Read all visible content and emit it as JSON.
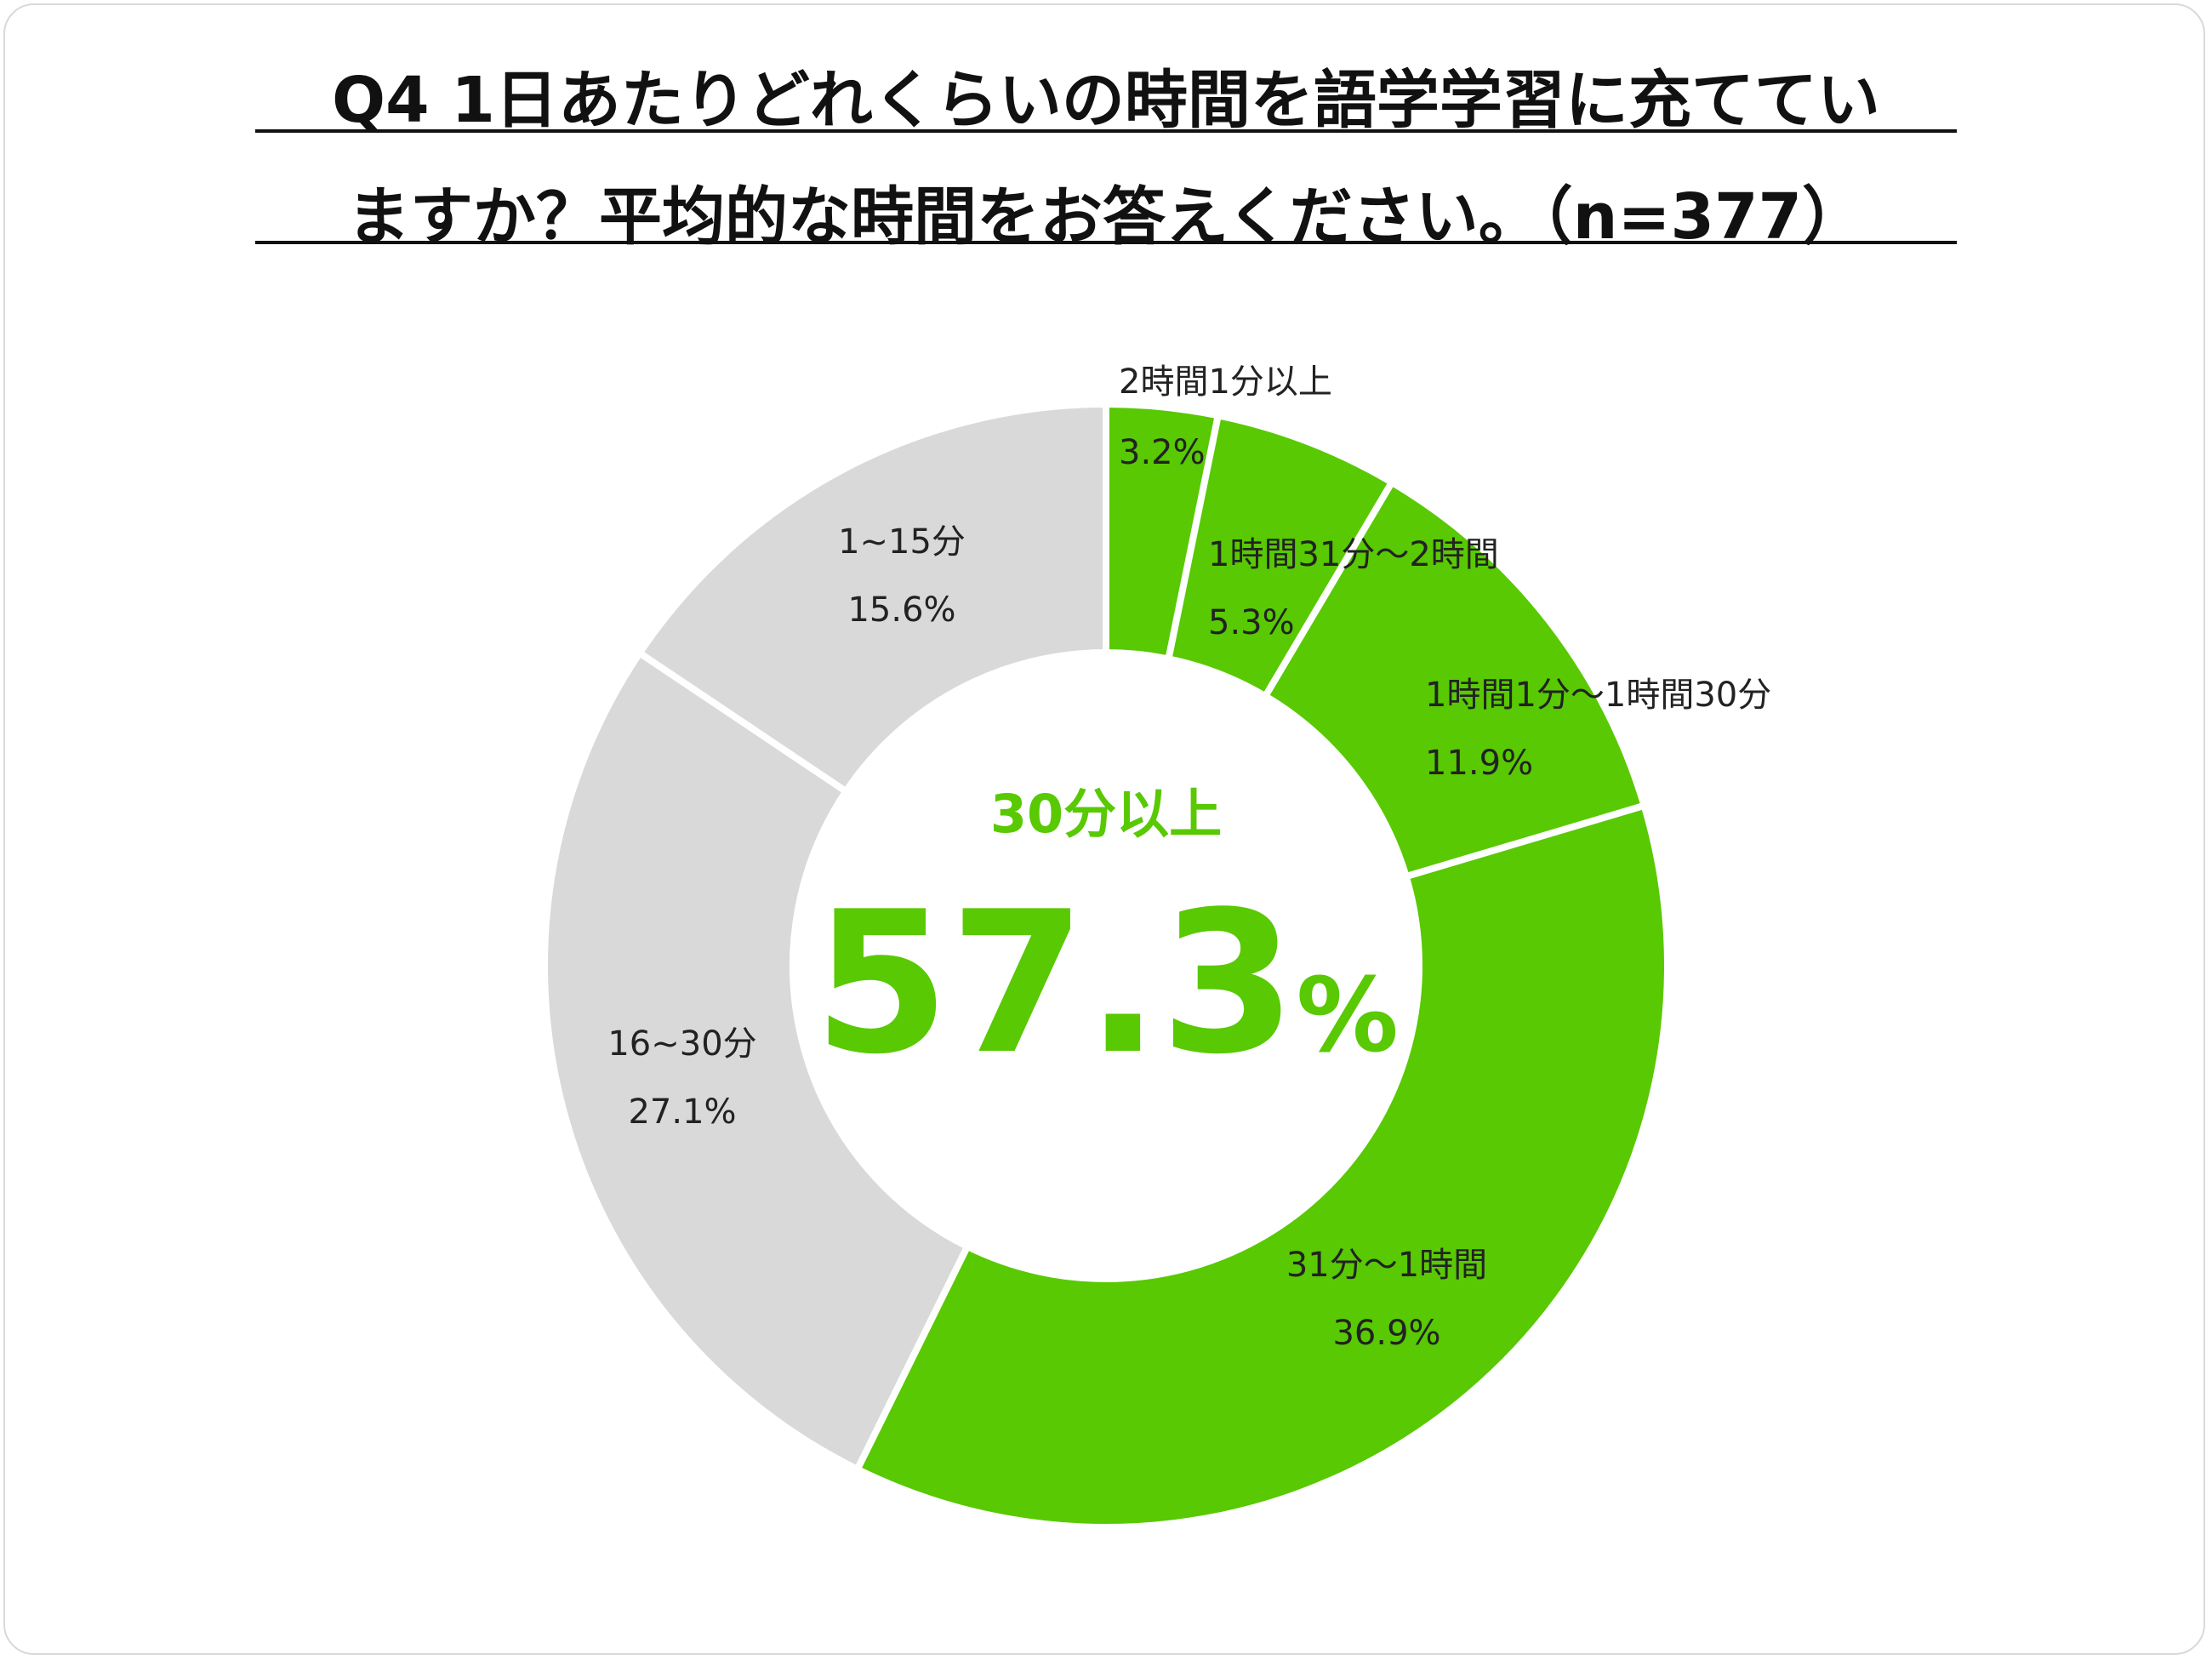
{
  "title": {
    "line1": "Q4 1日あたりどれくらいの時間を語学学習に充ててい",
    "line2": "ますか？平均的な時間をお答えください。（n=377）"
  },
  "colors": {
    "highlight": "#58c902",
    "muted": "#d9d9d9",
    "separator": "#ffffff"
  },
  "chart_data": {
    "type": "pie",
    "title": "Q4 1日あたりどれくらいの時間を語学学習に充てていますか？平均的な時間をお答えください。（n=377）",
    "categories": [
      "2時間1分以上",
      "1時間31分〜2時間",
      "1時間1分〜1時間30分",
      "31分〜1時間",
      "16~30分",
      "1~15分"
    ],
    "values": [
      3.2,
      5.3,
      11.9,
      36.9,
      27.1,
      15.6
    ],
    "value_labels": [
      "3.2%",
      "5.3%",
      "11.9%",
      "36.9%",
      "27.1%",
      "15.6%"
    ],
    "slice_colors": [
      "#58c902",
      "#58c902",
      "#58c902",
      "#58c902",
      "#d9d9d9",
      "#d9d9d9"
    ],
    "donut": true,
    "center": {
      "caption": "30分以上",
      "value": "57.3",
      "unit": "%"
    }
  }
}
